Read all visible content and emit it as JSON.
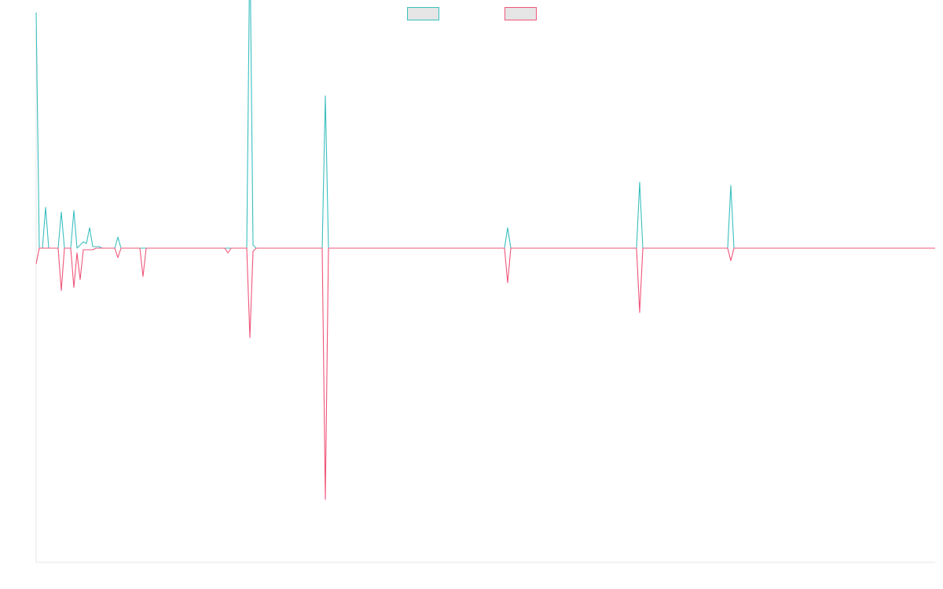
{
  "chart_data": {
    "type": "line",
    "title": "",
    "xlabel": "",
    "ylabel": "",
    "legend_position": "top-center",
    "grid": false,
    "ylim": [
      -2.0,
      1.4
    ],
    "xlim": [
      0,
      286
    ],
    "series": [
      {
        "name": "",
        "color": "#3bbfbf",
        "fill": "#e5e5e5",
        "points": [
          [
            0,
            1.5
          ],
          [
            1,
            0
          ],
          [
            2,
            0.0
          ],
          [
            3,
            0.26
          ],
          [
            4,
            0
          ],
          [
            5,
            0
          ],
          [
            6,
            0
          ],
          [
            7,
            0
          ],
          [
            8,
            0.23
          ],
          [
            9,
            0
          ],
          [
            10,
            0
          ],
          [
            11,
            0
          ],
          [
            12,
            0.24
          ],
          [
            13,
            0
          ],
          [
            14,
            0.02
          ],
          [
            15,
            0.04
          ],
          [
            16,
            0.03
          ],
          [
            17,
            0.13
          ],
          [
            18,
            0.01
          ],
          [
            19,
            0.01
          ],
          [
            20,
            0.01
          ],
          [
            21,
            0
          ],
          [
            22,
            0
          ],
          [
            23,
            0
          ],
          [
            24,
            0
          ],
          [
            25,
            0
          ],
          [
            26,
            0.07
          ],
          [
            27,
            0
          ],
          [
            28,
            0
          ],
          [
            29,
            0
          ],
          [
            30,
            0
          ],
          [
            31,
            0
          ],
          [
            32,
            0
          ],
          [
            33,
            0
          ],
          [
            34,
            0
          ],
          [
            35,
            0
          ],
          [
            36,
            0
          ],
          [
            37,
            0
          ],
          [
            38,
            0
          ],
          [
            39,
            0
          ],
          [
            40,
            0
          ],
          [
            45,
            0
          ],
          [
            50,
            0
          ],
          [
            55,
            0
          ],
          [
            60,
            0
          ],
          [
            65,
            0
          ],
          [
            67,
            0
          ],
          [
            68,
            1.97
          ],
          [
            69,
            0.02
          ],
          [
            70,
            0
          ],
          [
            75,
            0
          ],
          [
            80,
            0
          ],
          [
            85,
            0
          ],
          [
            88,
            0
          ],
          [
            91,
            0
          ],
          [
            92,
            0.97
          ],
          [
            93,
            0
          ],
          [
            100,
            0
          ],
          [
            120,
            0
          ],
          [
            140,
            0
          ],
          [
            149,
            0
          ],
          [
            150,
            0.13
          ],
          [
            151,
            0
          ],
          [
            160,
            0
          ],
          [
            180,
            0
          ],
          [
            190,
            0
          ],
          [
            191,
            0
          ],
          [
            192,
            0.42
          ],
          [
            193,
            0
          ],
          [
            200,
            0
          ],
          [
            210,
            0
          ],
          [
            219,
            0
          ],
          [
            220,
            0
          ],
          [
            221,
            0.4
          ],
          [
            222,
            0
          ],
          [
            240,
            0
          ],
          [
            260,
            0
          ],
          [
            286,
            0
          ]
        ]
      },
      {
        "name": "",
        "color": "#f0557a",
        "fill": "#e5e5e5",
        "points": [
          [
            0,
            -0.1
          ],
          [
            1,
            0
          ],
          [
            2,
            0
          ],
          [
            3,
            0
          ],
          [
            4,
            0
          ],
          [
            5,
            0
          ],
          [
            6,
            0
          ],
          [
            7,
            0
          ],
          [
            8,
            -0.27
          ],
          [
            9,
            0
          ],
          [
            10,
            0
          ],
          [
            11,
            0
          ],
          [
            12,
            -0.25
          ],
          [
            13,
            -0.03
          ],
          [
            14,
            -0.2
          ],
          [
            15,
            -0.01
          ],
          [
            16,
            -0.01
          ],
          [
            17,
            -0.01
          ],
          [
            18,
            -0.01
          ],
          [
            19,
            0
          ],
          [
            20,
            0
          ],
          [
            21,
            0
          ],
          [
            22,
            0
          ],
          [
            23,
            0
          ],
          [
            24,
            0
          ],
          [
            25,
            0
          ],
          [
            26,
            -0.06
          ],
          [
            27,
            0
          ],
          [
            28,
            0
          ],
          [
            29,
            0
          ],
          [
            30,
            0
          ],
          [
            31,
            0
          ],
          [
            32,
            0
          ],
          [
            33,
            0
          ],
          [
            34,
            -0.18
          ],
          [
            35,
            0
          ],
          [
            36,
            0
          ],
          [
            40,
            0
          ],
          [
            45,
            0
          ],
          [
            50,
            0
          ],
          [
            55,
            0
          ],
          [
            60,
            0
          ],
          [
            61,
            -0.03
          ],
          [
            62,
            0
          ],
          [
            65,
            0
          ],
          [
            67,
            0
          ],
          [
            68,
            -0.57
          ],
          [
            69,
            -0.02
          ],
          [
            70,
            0
          ],
          [
            75,
            0
          ],
          [
            80,
            0
          ],
          [
            85,
            0
          ],
          [
            88,
            0
          ],
          [
            91,
            0
          ],
          [
            92,
            -1.6
          ],
          [
            93,
            0
          ],
          [
            100,
            0
          ],
          [
            120,
            0
          ],
          [
            140,
            0
          ],
          [
            149,
            0
          ],
          [
            150,
            -0.22
          ],
          [
            151,
            0
          ],
          [
            160,
            0
          ],
          [
            180,
            0
          ],
          [
            190,
            0
          ],
          [
            191,
            0
          ],
          [
            192,
            -0.41
          ],
          [
            193,
            0
          ],
          [
            200,
            0
          ],
          [
            210,
            0
          ],
          [
            219,
            0
          ],
          [
            220,
            0
          ],
          [
            221,
            -0.08
          ],
          [
            222,
            0
          ],
          [
            240,
            0
          ],
          [
            260,
            0
          ],
          [
            286,
            0
          ]
        ]
      }
    ]
  }
}
